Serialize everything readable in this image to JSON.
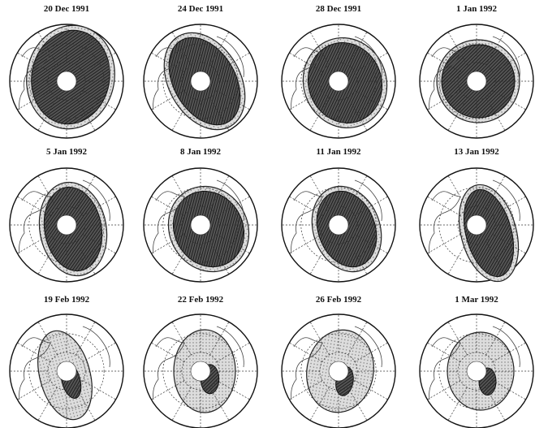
{
  "panels": [
    {
      "date": "20 Dec 1991"
    },
    {
      "date": "24 Dec 1991"
    },
    {
      "date": "28 Dec 1991"
    },
    {
      "date": "1 Jan 1992"
    },
    {
      "date": "5 Jan 1992"
    },
    {
      "date": "8 Jan 1992"
    },
    {
      "date": "11 Jan 1992"
    },
    {
      "date": "13 Jan 1992"
    },
    {
      "date": "19 Feb 1992"
    },
    {
      "date": "22 Feb 1992"
    },
    {
      "date": "26 Feb 1992"
    },
    {
      "date": "1 Mar 1992"
    }
  ]
}
